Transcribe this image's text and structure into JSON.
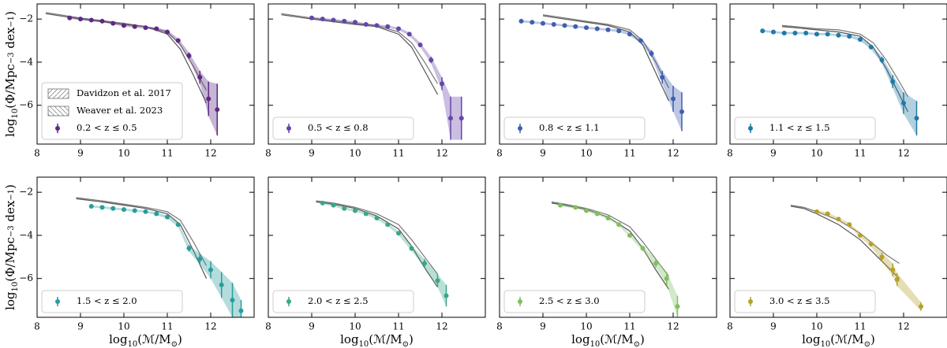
{
  "figure": {
    "xlabel": [
      {
        "text": "log"
      },
      {
        "text": "10",
        "shift": "sub"
      },
      {
        "text": "(ℳ/M"
      },
      {
        "text": "⊙",
        "shift": "sub"
      },
      {
        "text": ")"
      }
    ],
    "ylabel": [
      {
        "text": "log"
      },
      {
        "text": "10",
        "shift": "sub"
      },
      {
        "text": "(Φ/Mpc"
      },
      {
        "text": "−3",
        "shift": "sup"
      },
      {
        "text": " dex"
      },
      {
        "text": "−1",
        "shift": "sup"
      },
      {
        "text": ")"
      }
    ]
  },
  "chart_data": [
    {
      "type": "scatter",
      "xlim": [
        8,
        13
      ],
      "ylim": [
        -7.8,
        -1.3
      ],
      "xticks": [
        8,
        9,
        10,
        11,
        12
      ],
      "yticks": [
        {
          "value": -2,
          "label": "−2"
        },
        {
          "value": -4,
          "label": "−4"
        },
        {
          "value": -6,
          "label": "−6"
        }
      ],
      "series": [
        {
          "name": "0.2 < z ≤ 0.5",
          "color": "#5e2a84",
          "x": [
            8.75,
            9.0,
            9.25,
            9.5,
            9.75,
            10.0,
            10.25,
            10.5,
            10.75,
            11.0,
            11.25,
            11.5,
            11.75,
            11.95,
            12.15
          ],
          "values": [
            -1.95,
            -2.0,
            -2.05,
            -2.1,
            -2.2,
            -2.3,
            -2.35,
            -2.4,
            -2.45,
            -2.6,
            -3.0,
            -3.7,
            -4.7,
            -5.7,
            -6.2
          ],
          "errors": [
            0.05,
            0.05,
            0.05,
            0.05,
            0.05,
            0.05,
            0.05,
            0.05,
            0.06,
            0.08,
            0.1,
            0.15,
            0.3,
            0.8,
            1.2
          ]
        },
        {
          "name": "Davidzon et al. 2017",
          "color": "#777777",
          "x": [
            8.2,
            9.0,
            10.0,
            10.5,
            11.0,
            11.3,
            11.6,
            11.9
          ],
          "values": [
            -1.7,
            -1.95,
            -2.2,
            -2.35,
            -2.6,
            -3.2,
            -4.2,
            -5.3
          ]
        },
        {
          "name": "Weaver et al. 2023",
          "color": "#555555",
          "x": [
            8.2,
            9.0,
            10.0,
            10.5,
            11.0,
            11.3,
            11.6,
            11.9
          ],
          "values": [
            -1.75,
            -2.0,
            -2.25,
            -2.35,
            -2.7,
            -3.4,
            -4.6,
            -5.9
          ]
        }
      ]
    },
    {
      "type": "scatter",
      "xlim": [
        8,
        13
      ],
      "ylim": [
        -7.8,
        -1.3
      ],
      "xticks": [
        8,
        9,
        10,
        11,
        12
      ],
      "yticks": [
        -2,
        -4,
        -6
      ],
      "series": [
        {
          "name": "0.5 < z ≤ 0.8",
          "color": "#6646a8",
          "x": [
            9.0,
            9.25,
            9.5,
            9.75,
            10.0,
            10.25,
            10.5,
            10.75,
            11.0,
            11.25,
            11.5,
            11.75,
            12.0,
            12.2,
            12.45
          ],
          "values": [
            -1.95,
            -2.0,
            -2.05,
            -2.1,
            -2.15,
            -2.25,
            -2.3,
            -2.35,
            -2.45,
            -2.7,
            -3.2,
            -3.9,
            -5.0,
            -6.6,
            -6.6
          ],
          "errors": [
            0.05,
            0.05,
            0.05,
            0.05,
            0.05,
            0.05,
            0.05,
            0.05,
            0.06,
            0.08,
            0.1,
            0.15,
            0.3,
            1.0,
            1.0
          ]
        },
        {
          "color": "#777777",
          "x": [
            8.3,
            9.0,
            10.0,
            10.5,
            11.0,
            11.3,
            11.6,
            11.9
          ],
          "values": [
            -1.75,
            -1.95,
            -2.2,
            -2.3,
            -2.6,
            -3.1,
            -4.0,
            -5.0
          ]
        },
        {
          "color": "#555555",
          "x": [
            8.3,
            9.0,
            10.0,
            10.5,
            11.0,
            11.3,
            11.6,
            11.9
          ],
          "values": [
            -1.8,
            -2.0,
            -2.25,
            -2.35,
            -2.7,
            -3.3,
            -4.4,
            -5.5
          ]
        }
      ]
    },
    {
      "type": "scatter",
      "xlim": [
        8,
        13
      ],
      "ylim": [
        -7.8,
        -1.3
      ],
      "xticks": [
        8,
        9,
        10,
        11,
        12
      ],
      "yticks": [
        -2,
        -4,
        -6
      ],
      "series": [
        {
          "name": "0.8 < z ≤ 1.1",
          "color": "#3f5fb0",
          "x": [
            8.5,
            8.75,
            9.0,
            9.25,
            9.5,
            9.75,
            10.0,
            10.25,
            10.5,
            10.75,
            11.0,
            11.25,
            11.5,
            11.75,
            12.0,
            12.2
          ],
          "values": [
            -2.1,
            -2.15,
            -2.2,
            -2.25,
            -2.3,
            -2.35,
            -2.4,
            -2.45,
            -2.5,
            -2.55,
            -2.7,
            -3.0,
            -3.6,
            -4.7,
            -5.7,
            -6.3
          ],
          "errors": [
            0.05,
            0.05,
            0.05,
            0.05,
            0.05,
            0.05,
            0.05,
            0.05,
            0.05,
            0.06,
            0.07,
            0.1,
            0.15,
            0.3,
            0.6,
            0.9
          ]
        },
        {
          "color": "#777777",
          "x": [
            9.0,
            9.5,
            10.0,
            10.5,
            11.0,
            11.3,
            11.6,
            11.9
          ],
          "values": [
            -1.8,
            -1.95,
            -2.1,
            -2.25,
            -2.5,
            -3.0,
            -4.0,
            -5.2
          ]
        },
        {
          "color": "#555555",
          "x": [
            9.0,
            9.5,
            10.0,
            10.5,
            11.0,
            11.3,
            11.6,
            11.9
          ],
          "values": [
            -1.85,
            -2.0,
            -2.15,
            -2.3,
            -2.6,
            -3.2,
            -4.5,
            -5.8
          ]
        }
      ]
    },
    {
      "type": "scatter",
      "xlim": [
        8,
        13
      ],
      "ylim": [
        -7.8,
        -1.3
      ],
      "xticks": [
        8,
        9,
        10,
        11,
        12
      ],
      "yticks": [
        -2,
        -4,
        -6
      ],
      "series": [
        {
          "name": "1.1 < z ≤ 1.5",
          "color": "#1f7aa6",
          "x": [
            8.75,
            9.0,
            9.25,
            9.5,
            9.75,
            10.0,
            10.25,
            10.5,
            10.75,
            11.0,
            11.25,
            11.5,
            11.75,
            12.0,
            12.3
          ],
          "values": [
            -2.55,
            -2.6,
            -2.65,
            -2.65,
            -2.65,
            -2.7,
            -2.7,
            -2.75,
            -2.8,
            -2.95,
            -3.3,
            -3.9,
            -4.9,
            -5.9,
            -6.6
          ],
          "errors": [
            0.05,
            0.05,
            0.05,
            0.05,
            0.05,
            0.05,
            0.05,
            0.05,
            0.06,
            0.07,
            0.1,
            0.15,
            0.3,
            0.5,
            0.8
          ]
        },
        {
          "color": "#777777",
          "x": [
            9.2,
            9.5,
            10.0,
            10.5,
            11.0,
            11.3,
            11.6,
            11.9,
            12.1
          ],
          "values": [
            -2.3,
            -2.35,
            -2.45,
            -2.5,
            -2.7,
            -3.1,
            -3.9,
            -4.9,
            -5.6
          ]
        },
        {
          "color": "#555555",
          "x": [
            9.2,
            9.5,
            10.0,
            10.5,
            11.0,
            11.3,
            11.6,
            11.9,
            12.1
          ],
          "values": [
            -2.35,
            -2.4,
            -2.5,
            -2.6,
            -2.8,
            -3.3,
            -4.3,
            -5.5,
            -6.3
          ]
        }
      ]
    },
    {
      "type": "scatter",
      "xlim": [
        8,
        13
      ],
      "ylim": [
        -7.8,
        -1.3
      ],
      "xticks": [
        8,
        9,
        10,
        11,
        12
      ],
      "yticks": [
        {
          "value": -2,
          "label": "−2"
        },
        {
          "value": -4,
          "label": "−4"
        },
        {
          "value": -6,
          "label": "−6"
        }
      ],
      "series": [
        {
          "name": "1.5 < z ≤ 2.0",
          "color": "#2a9c9c",
          "x": [
            9.25,
            9.5,
            9.75,
            10.0,
            10.25,
            10.5,
            10.75,
            11.0,
            11.25,
            11.5,
            11.75,
            12.0,
            12.25,
            12.5,
            12.7
          ],
          "values": [
            -2.65,
            -2.7,
            -2.75,
            -2.8,
            -2.85,
            -2.9,
            -3.0,
            -3.15,
            -3.5,
            -4.6,
            -5.1,
            -5.6,
            -6.3,
            -7.0,
            -7.5
          ],
          "errors": [
            0.05,
            0.05,
            0.05,
            0.05,
            0.05,
            0.05,
            0.06,
            0.07,
            0.1,
            0.15,
            0.25,
            0.4,
            0.6,
            0.8,
            0.5
          ]
        },
        {
          "color": "#777777",
          "x": [
            8.9,
            9.5,
            10.0,
            10.5,
            11.0,
            11.3,
            11.6,
            11.9
          ],
          "values": [
            -2.25,
            -2.4,
            -2.55,
            -2.7,
            -2.9,
            -3.3,
            -4.3,
            -5.4
          ]
        },
        {
          "color": "#555555",
          "x": [
            8.9,
            9.5,
            10.0,
            10.5,
            11.0,
            11.3,
            11.6,
            11.9
          ],
          "values": [
            -2.3,
            -2.45,
            -2.6,
            -2.75,
            -3.0,
            -3.5,
            -4.7,
            -6.0
          ]
        }
      ]
    },
    {
      "type": "scatter",
      "xlim": [
        8,
        13
      ],
      "ylim": [
        -7.8,
        -1.3
      ],
      "xticks": [
        8,
        9,
        10,
        11,
        12
      ],
      "yticks": [
        -2,
        -4,
        -6
      ],
      "series": [
        {
          "name": "2.0 < z ≤ 2.5",
          "color": "#3aa68a",
          "x": [
            9.25,
            9.5,
            9.75,
            10.0,
            10.25,
            10.5,
            10.75,
            11.0,
            11.3,
            11.6,
            11.9,
            12.1
          ],
          "values": [
            -2.5,
            -2.6,
            -2.75,
            -2.85,
            -3.0,
            -3.2,
            -3.5,
            -3.9,
            -4.6,
            -5.3,
            -6.1,
            -6.8
          ],
          "errors": [
            0.05,
            0.05,
            0.05,
            0.05,
            0.05,
            0.06,
            0.07,
            0.08,
            0.12,
            0.2,
            0.3,
            0.5
          ]
        },
        {
          "color": "#777777",
          "x": [
            9.1,
            9.5,
            10.0,
            10.5,
            11.0,
            11.3,
            11.6,
            11.9
          ],
          "values": [
            -2.4,
            -2.5,
            -2.7,
            -3.0,
            -3.5,
            -4.2,
            -5.0,
            -5.8
          ]
        },
        {
          "color": "#555555",
          "x": [
            9.1,
            9.5,
            10.0,
            10.5,
            11.0,
            11.3,
            11.6,
            11.9
          ],
          "values": [
            -2.45,
            -2.55,
            -2.75,
            -3.1,
            -3.7,
            -4.5,
            -5.5,
            -6.4
          ]
        }
      ]
    },
    {
      "type": "scatter",
      "xlim": [
        8,
        13
      ],
      "ylim": [
        -7.8,
        -1.3
      ],
      "xticks": [
        8,
        9,
        10,
        11,
        12
      ],
      "yticks": [
        -2,
        -4,
        -6
      ],
      "series": [
        {
          "name": "2.5 < z ≤ 3.0",
          "color": "#7fbf5e",
          "x": [
            9.4,
            9.75,
            10.0,
            10.25,
            10.5,
            10.75,
            11.0,
            11.3,
            11.6,
            11.85,
            12.1
          ],
          "values": [
            -2.6,
            -2.7,
            -2.85,
            -3.0,
            -3.2,
            -3.5,
            -4.0,
            -4.6,
            -5.3,
            -6.0,
            -7.3
          ],
          "errors": [
            0.05,
            0.05,
            0.05,
            0.05,
            0.06,
            0.07,
            0.08,
            0.12,
            0.2,
            0.3,
            0.5
          ]
        },
        {
          "color": "#777777",
          "x": [
            9.2,
            9.5,
            10.0,
            10.5,
            11.0,
            11.3,
            11.6,
            11.9
          ],
          "values": [
            -2.45,
            -2.55,
            -2.75,
            -3.05,
            -3.6,
            -4.3,
            -5.1,
            -5.9
          ]
        },
        {
          "color": "#555555",
          "x": [
            9.2,
            9.5,
            10.0,
            10.5,
            11.0,
            11.3,
            11.6,
            11.9
          ],
          "values": [
            -2.5,
            -2.6,
            -2.8,
            -3.15,
            -3.8,
            -4.6,
            -5.6,
            -6.5
          ]
        }
      ]
    },
    {
      "type": "scatter",
      "xlim": [
        8,
        13
      ],
      "ylim": [
        -7.8,
        -1.3
      ],
      "xticks": [
        8,
        9,
        10,
        11,
        12
      ],
      "yticks": [
        -2,
        -4,
        -6
      ],
      "series": [
        {
          "name": "3.0 < z ≤ 3.5",
          "color": "#b5a12a",
          "x": [
            10.0,
            10.25,
            10.5,
            10.75,
            11.0,
            11.25,
            11.5,
            11.75,
            11.85,
            12.4
          ],
          "values": [
            -2.9,
            -3.0,
            -3.25,
            -3.5,
            -4.0,
            -4.4,
            -5.0,
            -5.6,
            -6.05,
            -7.3
          ],
          "errors": [
            0.06,
            0.06,
            0.07,
            0.08,
            0.1,
            0.12,
            0.2,
            0.3,
            0.3,
            0.2
          ]
        },
        {
          "color": "#777777",
          "x": [
            9.4,
            9.7,
            10.0,
            10.5,
            11.0,
            11.3,
            11.6,
            11.9
          ],
          "values": [
            -2.6,
            -2.7,
            -2.9,
            -3.3,
            -3.9,
            -4.4,
            -4.9,
            -5.3
          ]
        },
        {
          "color": "#555555",
          "x": [
            9.4,
            9.7,
            10.0,
            10.5,
            11.0,
            11.3,
            11.6,
            11.9
          ],
          "values": [
            -2.65,
            -2.75,
            -3.0,
            -3.5,
            -4.2,
            -4.8,
            -5.4,
            -6.0
          ]
        }
      ]
    }
  ]
}
